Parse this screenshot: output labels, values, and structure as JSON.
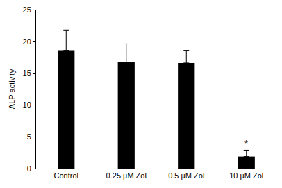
{
  "chart_data": {
    "type": "bar",
    "categories": [
      "Control",
      "0.25 µM Zol",
      "0.5 µM Zol",
      "10 µM Zol"
    ],
    "values": [
      18.6,
      16.7,
      16.6,
      1.9
    ],
    "errors": [
      3.2,
      2.9,
      2.0,
      1.0
    ],
    "color": "#000000",
    "y_label": "ALP activity",
    "ylim": [
      0,
      25
    ],
    "yticks": [
      0,
      5,
      10,
      15,
      20,
      25
    ],
    "grid": false,
    "annotations": [
      {
        "text": "*",
        "category": "10 µM Zol"
      }
    ]
  }
}
